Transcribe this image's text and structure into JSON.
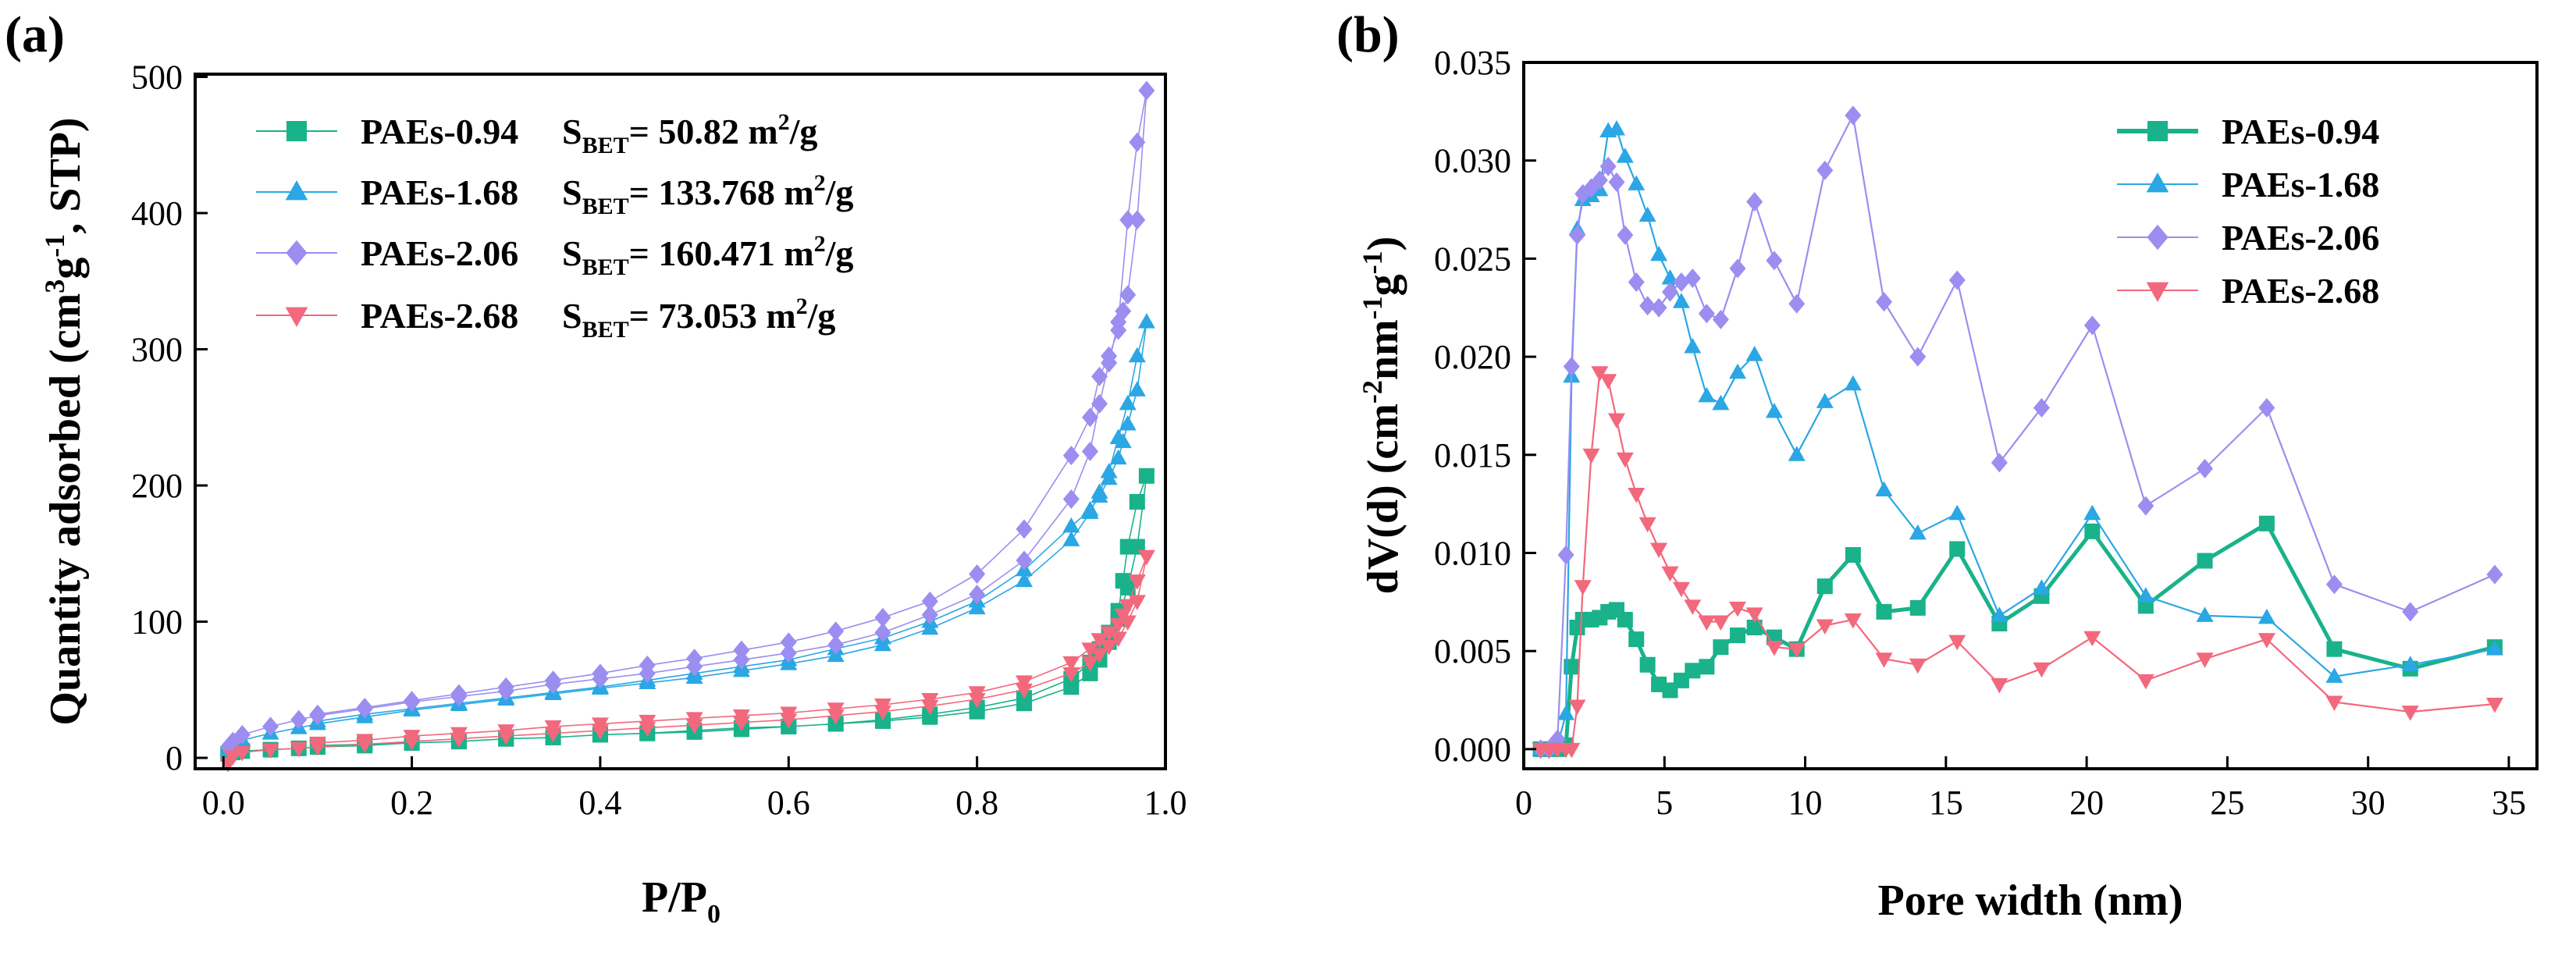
{
  "chart_data": [
    {
      "type": "line",
      "panel_label": "(a)",
      "xlabel": {
        "main": "P/P",
        "sub": "0"
      },
      "ylabel": {
        "prefix": "Quantity adsorbed (cm",
        "sup1": "3",
        "mid": "g",
        "sup2": "-1",
        "suffix": ", STP)"
      },
      "xlim": [
        -0.03,
        1.0
      ],
      "ylim": [
        -8,
        502
      ],
      "xticks": [
        "0.0",
        "0.2",
        "0.4",
        "0.6",
        "0.8",
        "1.0"
      ],
      "xtick_values": [
        0.0,
        0.2,
        0.4,
        0.6,
        0.8,
        1.0
      ],
      "yticks": [
        "0",
        "100",
        "200",
        "300",
        "400",
        "500"
      ],
      "ytick_values": [
        0,
        100,
        200,
        300,
        400,
        500
      ],
      "legend_position": "top-left",
      "series": [
        {
          "name": "PAEs-0.94",
          "bet": {
            "prefix": "S",
            "sub": "BET",
            "value": "= 50.82 m",
            "sup": "2",
            "unit": "/g"
          },
          "color": "#19b28a",
          "marker": "square",
          "x": [
            0.005,
            0.01,
            0.02,
            0.05,
            0.08,
            0.1,
            0.15,
            0.2,
            0.25,
            0.3,
            0.35,
            0.4,
            0.45,
            0.5,
            0.55,
            0.6,
            0.65,
            0.7,
            0.75,
            0.8,
            0.85,
            0.9,
            0.92,
            0.93,
            0.94,
            0.95,
            0.96,
            0.97,
            0.98,
            0.97,
            0.96,
            0.955,
            0.95,
            0.94,
            0.93,
            0.92,
            0.9,
            0.85,
            0.8,
            0.75,
            0.7,
            0.65,
            0.6,
            0.55,
            0.5,
            0.45,
            0.4,
            0.35,
            0.3,
            0.25,
            0.2,
            0.15,
            0.1
          ],
          "y": [
            3,
            4,
            5,
            6,
            7,
            8,
            9,
            11,
            12,
            14,
            15,
            17,
            18,
            20,
            22,
            23,
            25,
            27,
            30,
            34,
            40,
            52,
            62,
            72,
            85,
            102,
            125,
            155,
            207,
            188,
            155,
            130,
            108,
            92,
            80,
            70,
            58,
            44,
            37,
            32,
            28,
            25,
            23,
            21,
            19,
            18,
            17,
            15,
            14,
            12,
            11,
            10,
            9
          ]
        },
        {
          "name": "PAEs-1.68",
          "bet": {
            "prefix": "S",
            "sub": "BET",
            "value": "= 133.768 m",
            "sup": "2",
            "unit": "/g"
          },
          "color": "#2aa7e4",
          "marker": "triangle-up",
          "x": [
            0.005,
            0.01,
            0.02,
            0.05,
            0.08,
            0.1,
            0.15,
            0.2,
            0.25,
            0.3,
            0.35,
            0.4,
            0.45,
            0.5,
            0.55,
            0.6,
            0.65,
            0.7,
            0.75,
            0.8,
            0.85,
            0.9,
            0.92,
            0.93,
            0.94,
            0.95,
            0.96,
            0.97,
            0.98,
            0.97,
            0.96,
            0.955,
            0.95,
            0.94,
            0.93,
            0.92,
            0.9,
            0.85,
            0.8,
            0.75,
            0.7,
            0.65,
            0.6,
            0.55,
            0.5,
            0.45,
            0.4,
            0.35,
            0.3,
            0.25,
            0.2,
            0.15,
            0.1
          ],
          "y": [
            6,
            9,
            13,
            18,
            22,
            25,
            30,
            35,
            39,
            43,
            47,
            51,
            55,
            59,
            64,
            69,
            75,
            83,
            95,
            110,
            130,
            160,
            180,
            195,
            210,
            235,
            260,
            295,
            320,
            270,
            245,
            232,
            220,
            205,
            192,
            182,
            170,
            138,
            115,
            100,
            88,
            80,
            72,
            67,
            62,
            57,
            52,
            48,
            44,
            40,
            36,
            32,
            27
          ]
        },
        {
          "name": "PAEs-2.06",
          "bet": {
            "prefix": "S",
            "sub": "BET",
            "value": "= 160.471 m",
            "sup": "2",
            "unit": "/g"
          },
          "color": "#9b8ef0",
          "marker": "diamond",
          "x": [
            0.005,
            0.01,
            0.02,
            0.05,
            0.08,
            0.1,
            0.15,
            0.2,
            0.25,
            0.3,
            0.35,
            0.4,
            0.45,
            0.5,
            0.55,
            0.6,
            0.65,
            0.7,
            0.75,
            0.8,
            0.85,
            0.9,
            0.92,
            0.93,
            0.94,
            0.95,
            0.96,
            0.97,
            0.98,
            0.97,
            0.96,
            0.955,
            0.95,
            0.94,
            0.93,
            0.92,
            0.9,
            0.85,
            0.8,
            0.75,
            0.7,
            0.65,
            0.6,
            0.55,
            0.5,
            0.45,
            0.4,
            0.35,
            0.3,
            0.25,
            0.2,
            0.15,
            0.1
          ],
          "y": [
            8,
            12,
            17,
            23,
            28,
            31,
            36,
            41,
            45,
            49,
            54,
            58,
            62,
            67,
            72,
            77,
            83,
            92,
            105,
            120,
            145,
            190,
            225,
            260,
            290,
            320,
            395,
            452,
            490,
            395,
            340,
            328,
            314,
            295,
            280,
            250,
            222,
            168,
            135,
            115,
            103,
            93,
            85,
            79,
            73,
            68,
            62,
            57,
            52,
            47,
            42,
            37,
            32
          ]
        },
        {
          "name": "PAEs-2.68",
          "bet": {
            "prefix": "S",
            "sub": "BET",
            "value": "= 73.053 m",
            "sup": "2",
            "unit": "/g"
          },
          "color": "#f2687c",
          "marker": "triangle-down",
          "x": [
            0.005,
            0.01,
            0.02,
            0.05,
            0.08,
            0.1,
            0.15,
            0.2,
            0.25,
            0.3,
            0.35,
            0.4,
            0.45,
            0.5,
            0.55,
            0.6,
            0.65,
            0.7,
            0.75,
            0.8,
            0.85,
            0.9,
            0.92,
            0.93,
            0.94,
            0.95,
            0.96,
            0.97,
            0.98,
            0.97,
            0.96,
            0.955,
            0.95,
            0.94,
            0.93,
            0.92,
            0.9,
            0.85,
            0.8,
            0.75,
            0.7,
            0.65,
            0.6,
            0.55,
            0.5,
            0.45,
            0.4,
            0.35,
            0.3,
            0.25,
            0.2,
            0.15,
            0.1
          ],
          "y": [
            -4,
            1,
            4,
            6,
            7,
            8,
            10,
            12,
            14,
            16,
            18,
            20,
            22,
            24,
            26,
            28,
            31,
            34,
            38,
            43,
            50,
            62,
            70,
            76,
            82,
            88,
            100,
            115,
            148,
            130,
            112,
            105,
            98,
            92,
            87,
            80,
            70,
            56,
            48,
            43,
            39,
            36,
            33,
            31,
            29,
            27,
            25,
            23,
            20,
            18,
            16,
            13,
            11
          ]
        }
      ]
    },
    {
      "type": "line",
      "panel_label": "(b)",
      "xlabel": {
        "main": "Pore width (nm)"
      },
      "ylabel": {
        "prefix": "dV(d) (cm",
        "sup1": "-2",
        "mid": "nm",
        "sup2": "-1",
        "mid2": "g",
        "sup3": "-1",
        "suffix": ")"
      },
      "xlim": [
        0,
        36
      ],
      "ylim": [
        -0.001,
        0.035
      ],
      "xticks": [
        "0",
        "5",
        "10",
        "15",
        "20",
        "25",
        "30",
        "35"
      ],
      "xtick_values": [
        0,
        5,
        10,
        15,
        20,
        25,
        30,
        35
      ],
      "yticks": [
        "0.000",
        "0.005",
        "0.010",
        "0.015",
        "0.020",
        "0.025",
        "0.030",
        "0.035"
      ],
      "ytick_values": [
        0,
        0.005,
        0.01,
        0.015,
        0.02,
        0.025,
        0.03,
        0.035
      ],
      "legend_position": "top-right",
      "series": [
        {
          "name": "PAEs-0.94",
          "color": "#19b28a",
          "marker": "square",
          "thick": true,
          "x": [
            0.6,
            0.9,
            1.2,
            1.5,
            1.7,
            1.9,
            2.1,
            2.4,
            2.7,
            3.0,
            3.3,
            3.6,
            4.0,
            4.4,
            4.8,
            5.2,
            5.6,
            6.0,
            6.5,
            7.0,
            7.6,
            8.2,
            8.9,
            9.7,
            10.7,
            11.7,
            12.8,
            14.0,
            15.4,
            16.9,
            18.4,
            20.2,
            22.1,
            24.2,
            26.4,
            28.8,
            31.5,
            34.5
          ],
          "y": [
            0,
            0,
            0,
            0.0002,
            0.0042,
            0.0062,
            0.0066,
            0.0066,
            0.0067,
            0.007,
            0.0071,
            0.0066,
            0.0056,
            0.0043,
            0.0033,
            0.003,
            0.0035,
            0.004,
            0.0042,
            0.0052,
            0.0058,
            0.0062,
            0.0057,
            0.0051,
            0.0083,
            0.0099,
            0.007,
            0.0072,
            0.0102,
            0.0064,
            0.0078,
            0.0111,
            0.0073,
            0.0096,
            0.0115,
            0.0051,
            0.0041,
            0.0052
          ]
        },
        {
          "name": "PAEs-1.68",
          "color": "#2aa7e4",
          "marker": "triangle-up",
          "thick": false,
          "x": [
            0.6,
            0.9,
            1.2,
            1.5,
            1.7,
            1.9,
            2.1,
            2.4,
            2.7,
            3.0,
            3.3,
            3.6,
            4.0,
            4.4,
            4.8,
            5.2,
            5.6,
            6.0,
            6.5,
            7.0,
            7.6,
            8.2,
            8.9,
            9.7,
            10.7,
            11.7,
            12.8,
            14.0,
            15.4,
            16.9,
            18.4,
            20.2,
            22.1,
            24.2,
            26.4,
            28.8,
            31.5,
            34.5
          ],
          "y": [
            0,
            0,
            0.0002,
            0.0018,
            0.019,
            0.0265,
            0.028,
            0.0282,
            0.0285,
            0.0315,
            0.0316,
            0.0302,
            0.0288,
            0.0272,
            0.0252,
            0.024,
            0.0228,
            0.0205,
            0.018,
            0.0176,
            0.0192,
            0.0201,
            0.0172,
            0.015,
            0.0177,
            0.0186,
            0.0132,
            0.011,
            0.012,
            0.0068,
            0.0082,
            0.012,
            0.0078,
            0.0068,
            0.0067,
            0.0037,
            0.0043,
            0.0051
          ]
        },
        {
          "name": "PAEs-2.06",
          "color": "#9b8ef0",
          "marker": "diamond",
          "thick": false,
          "x": [
            0.6,
            0.9,
            1.2,
            1.5,
            1.7,
            1.9,
            2.1,
            2.4,
            2.7,
            3.0,
            3.3,
            3.6,
            4.0,
            4.4,
            4.8,
            5.2,
            5.6,
            6.0,
            6.5,
            7.0,
            7.6,
            8.2,
            8.9,
            9.7,
            10.7,
            11.7,
            12.8,
            14.0,
            15.4,
            16.9,
            18.4,
            20.2,
            22.1,
            24.2,
            26.4,
            28.8,
            31.5,
            34.5
          ],
          "y": [
            0,
            0,
            0.0005,
            0.0099,
            0.0195,
            0.0262,
            0.0283,
            0.0286,
            0.029,
            0.0297,
            0.0289,
            0.0262,
            0.0238,
            0.0226,
            0.0225,
            0.0233,
            0.0238,
            0.024,
            0.0222,
            0.0219,
            0.0245,
            0.0279,
            0.0249,
            0.0227,
            0.0295,
            0.0323,
            0.0228,
            0.02,
            0.0239,
            0.0146,
            0.0174,
            0.0216,
            0.0124,
            0.0143,
            0.0174,
            0.0084,
            0.007,
            0.0089
          ]
        },
        {
          "name": "PAEs-2.68",
          "color": "#f2687c",
          "marker": "triangle-down",
          "thick": false,
          "x": [
            0.6,
            0.9,
            1.2,
            1.5,
            1.7,
            1.9,
            2.1,
            2.4,
            2.7,
            3.0,
            3.3,
            3.6,
            4.0,
            4.4,
            4.8,
            5.2,
            5.6,
            6.0,
            6.5,
            7.0,
            7.6,
            8.2,
            8.9,
            9.7,
            10.7,
            11.7,
            12.8,
            14.0,
            15.4,
            16.9,
            18.4,
            20.2,
            22.1,
            24.2,
            26.4,
            28.8,
            31.5,
            34.5
          ],
          "y": [
            0,
            0,
            0,
            0,
            0,
            0.0022,
            0.0083,
            0.015,
            0.0192,
            0.0188,
            0.0168,
            0.0148,
            0.013,
            0.0115,
            0.0102,
            0.009,
            0.0082,
            0.0073,
            0.0065,
            0.0065,
            0.0072,
            0.0069,
            0.0052,
            0.0051,
            0.0063,
            0.0066,
            0.0046,
            0.0043,
            0.0055,
            0.0033,
            0.0041,
            0.0057,
            0.0035,
            0.0046,
            0.0056,
            0.0024,
            0.0019,
            0.0023
          ]
        }
      ]
    }
  ]
}
